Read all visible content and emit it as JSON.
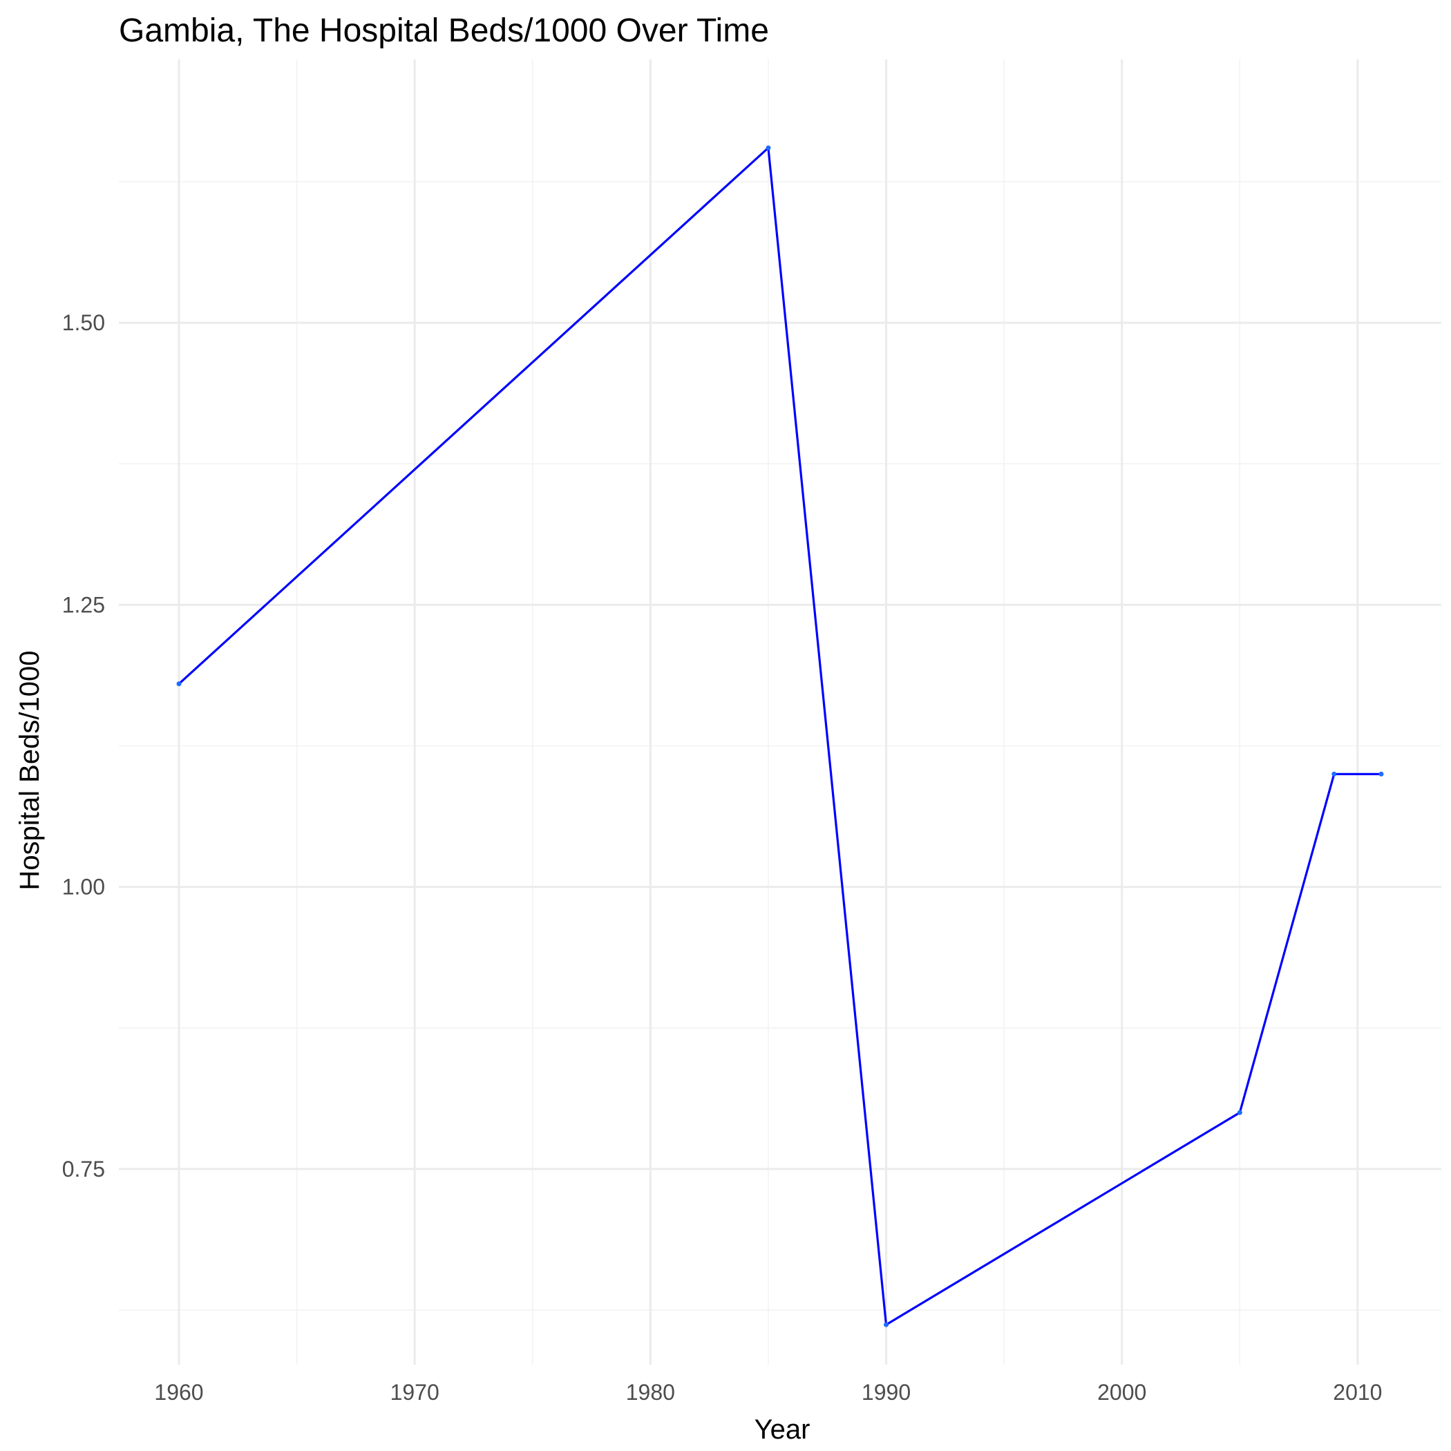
{
  "chart_data": {
    "type": "line",
    "title": "Gambia, The Hospital Beds/1000 Over Time",
    "xlabel": "Year",
    "ylabel": "Hospital Beds/1000",
    "xlim": [
      1957.45,
      2013.55
    ],
    "ylim": [
      0.5766,
      1.7334
    ],
    "x_ticks": [
      1960,
      1970,
      1980,
      1990,
      2000,
      2010
    ],
    "x_minor": [
      1965,
      1975,
      1985,
      1995,
      2005
    ],
    "y_ticks": [
      0.75,
      1.0,
      1.25,
      1.5
    ],
    "y_tick_labels": [
      "0.75",
      "1.00",
      "1.25",
      "1.50"
    ],
    "y_minor": [
      0.625,
      0.875,
      1.125,
      1.375,
      1.625
    ],
    "grid": true,
    "series": [
      {
        "color": "#0000ff",
        "x": [
          1960,
          1985,
          1990,
          2005,
          2009,
          2011
        ],
        "y": [
          1.18,
          1.655,
          0.612,
          0.8,
          1.1,
          1.1
        ]
      }
    ]
  }
}
